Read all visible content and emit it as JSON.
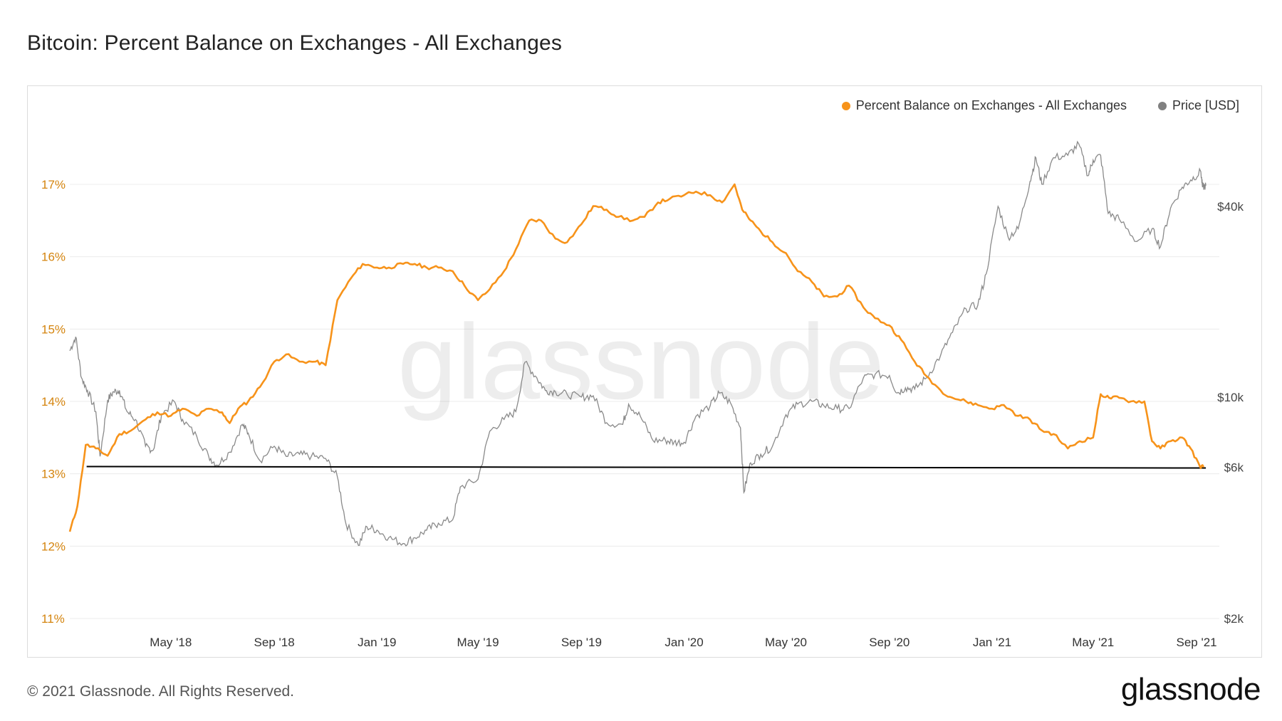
{
  "title": "Bitcoin: Percent Balance on Exchanges - All Exchanges",
  "footer": {
    "copyright": "© 2021 Glassnode. All Rights Reserved.",
    "logo": "glassnode"
  },
  "watermark": "glassnode",
  "colors": {
    "balance": "#f7931a",
    "price": "#8a8a8a",
    "grid": "#ececec",
    "refline": "#000000",
    "left_axis": "#d4840e"
  },
  "legend": [
    {
      "label": "Percent Balance on Exchanges - All Exchanges",
      "color": "#f7931a"
    },
    {
      "label": "Price [USD]",
      "color": "#808080"
    }
  ],
  "chart_data": {
    "type": "line",
    "title": "Bitcoin: Percent Balance on Exchanges - All Exchanges",
    "x_ticks": [
      "May '18",
      "Sep '18",
      "Jan '19",
      "May '19",
      "Sep '19",
      "Jan '20",
      "May '20",
      "Sep '20",
      "Jan '21",
      "May '21",
      "Sep '21"
    ],
    "y_left": {
      "ticks": [
        "11%",
        "12%",
        "13%",
        "14%",
        "15%",
        "16%",
        "17%"
      ],
      "range": [
        11,
        17.6
      ]
    },
    "y_right": {
      "scale": "log",
      "ticks": [
        "$2k",
        "$6k",
        "$10k",
        "$40k"
      ],
      "tick_values": [
        2000,
        6000,
        10000,
        40000
      ]
    },
    "reference_line": {
      "y_percent": 13.1,
      "x_start": "2018-01-21",
      "x_end": "2021-09-12"
    },
    "grid": "horizontal",
    "legend_position": "top-right",
    "series": [
      {
        "name": "Percent Balance on Exchanges - All Exchanges",
        "axis": "left",
        "points": [
          [
            "2018-01-01",
            12.2
          ],
          [
            "2018-01-10",
            12.55
          ],
          [
            "2018-01-20",
            13.4
          ],
          [
            "2018-02-01",
            13.35
          ],
          [
            "2018-02-15",
            13.25
          ],
          [
            "2018-03-01",
            13.55
          ],
          [
            "2018-03-15",
            13.6
          ],
          [
            "2018-04-01",
            13.75
          ],
          [
            "2018-04-15",
            13.85
          ],
          [
            "2018-05-01",
            13.8
          ],
          [
            "2018-05-15",
            13.9
          ],
          [
            "2018-06-01",
            13.8
          ],
          [
            "2018-06-15",
            13.9
          ],
          [
            "2018-07-01",
            13.85
          ],
          [
            "2018-07-10",
            13.7
          ],
          [
            "2018-07-20",
            13.9
          ],
          [
            "2018-08-01",
            14.0
          ],
          [
            "2018-08-15",
            14.2
          ],
          [
            "2018-09-01",
            14.55
          ],
          [
            "2018-09-15",
            14.65
          ],
          [
            "2018-10-01",
            14.55
          ],
          [
            "2018-10-20",
            14.55
          ],
          [
            "2018-11-01",
            14.5
          ],
          [
            "2018-11-15",
            15.4
          ],
          [
            "2018-12-01",
            15.7
          ],
          [
            "2018-12-15",
            15.9
          ],
          [
            "2019-01-01",
            15.85
          ],
          [
            "2019-01-15",
            15.85
          ],
          [
            "2019-02-01",
            15.9
          ],
          [
            "2019-02-15",
            15.9
          ],
          [
            "2019-03-01",
            15.85
          ],
          [
            "2019-03-15",
            15.85
          ],
          [
            "2019-04-01",
            15.8
          ],
          [
            "2019-04-15",
            15.6
          ],
          [
            "2019-05-01",
            15.4
          ],
          [
            "2019-05-15",
            15.55
          ],
          [
            "2019-06-01",
            15.8
          ],
          [
            "2019-06-15",
            16.1
          ],
          [
            "2019-07-01",
            16.5
          ],
          [
            "2019-07-15",
            16.5
          ],
          [
            "2019-08-01",
            16.25
          ],
          [
            "2019-08-15",
            16.2
          ],
          [
            "2019-09-01",
            16.45
          ],
          [
            "2019-09-15",
            16.7
          ],
          [
            "2019-10-01",
            16.65
          ],
          [
            "2019-10-15",
            16.55
          ],
          [
            "2019-11-01",
            16.5
          ],
          [
            "2019-11-15",
            16.55
          ],
          [
            "2019-12-01",
            16.75
          ],
          [
            "2019-12-15",
            16.8
          ],
          [
            "2020-01-01",
            16.85
          ],
          [
            "2020-01-15",
            16.9
          ],
          [
            "2020-02-01",
            16.85
          ],
          [
            "2020-02-15",
            16.75
          ],
          [
            "2020-03-01",
            17.0
          ],
          [
            "2020-03-10",
            16.65
          ],
          [
            "2020-03-20",
            16.5
          ],
          [
            "2020-04-01",
            16.35
          ],
          [
            "2020-04-15",
            16.2
          ],
          [
            "2020-05-01",
            16.05
          ],
          [
            "2020-05-15",
            15.8
          ],
          [
            "2020-06-01",
            15.65
          ],
          [
            "2020-06-15",
            15.45
          ],
          [
            "2020-07-01",
            15.45
          ],
          [
            "2020-07-15",
            15.6
          ],
          [
            "2020-08-01",
            15.3
          ],
          [
            "2020-08-15",
            15.15
          ],
          [
            "2020-09-01",
            15.05
          ],
          [
            "2020-09-15",
            14.85
          ],
          [
            "2020-10-01",
            14.55
          ],
          [
            "2020-10-15",
            14.35
          ],
          [
            "2020-11-01",
            14.15
          ],
          [
            "2020-11-15",
            14.05
          ],
          [
            "2020-12-01",
            14.0
          ],
          [
            "2020-12-15",
            13.95
          ],
          [
            "2021-01-01",
            13.9
          ],
          [
            "2021-01-15",
            13.95
          ],
          [
            "2021-02-01",
            13.8
          ],
          [
            "2021-02-15",
            13.75
          ],
          [
            "2021-03-01",
            13.6
          ],
          [
            "2021-03-15",
            13.55
          ],
          [
            "2021-04-01",
            13.35
          ],
          [
            "2021-04-15",
            13.45
          ],
          [
            "2021-05-01",
            13.5
          ],
          [
            "2021-05-10",
            14.1
          ],
          [
            "2021-05-20",
            14.05
          ],
          [
            "2021-06-01",
            14.05
          ],
          [
            "2021-06-15",
            14.0
          ],
          [
            "2021-07-01",
            14.0
          ],
          [
            "2021-07-10",
            13.45
          ],
          [
            "2021-07-20",
            13.35
          ],
          [
            "2021-08-01",
            13.45
          ],
          [
            "2021-08-15",
            13.5
          ],
          [
            "2021-08-25",
            13.35
          ],
          [
            "2021-09-05",
            13.1
          ],
          [
            "2021-09-10",
            13.1
          ]
        ]
      },
      {
        "name": "Price [USD]",
        "axis": "right",
        "points": [
          [
            "2018-01-01",
            14000
          ],
          [
            "2018-01-08",
            15500
          ],
          [
            "2018-01-15",
            11500
          ],
          [
            "2018-01-22",
            10500
          ],
          [
            "2018-02-01",
            9000
          ],
          [
            "2018-02-06",
            6500
          ],
          [
            "2018-02-15",
            9800
          ],
          [
            "2018-02-22",
            10400
          ],
          [
            "2018-03-01",
            10500
          ],
          [
            "2018-03-10",
            9000
          ],
          [
            "2018-03-20",
            8500
          ],
          [
            "2018-04-01",
            7000
          ],
          [
            "2018-04-10",
            6800
          ],
          [
            "2018-04-20",
            8800
          ],
          [
            "2018-05-05",
            9700
          ],
          [
            "2018-05-15",
            8500
          ],
          [
            "2018-06-01",
            7500
          ],
          [
            "2018-06-15",
            6500
          ],
          [
            "2018-06-25",
            6100
          ],
          [
            "2018-07-10",
            6700
          ],
          [
            "2018-07-25",
            8200
          ],
          [
            "2018-08-01",
            7700
          ],
          [
            "2018-08-15",
            6300
          ],
          [
            "2018-09-01",
            7000
          ],
          [
            "2018-09-15",
            6500
          ],
          [
            "2018-10-01",
            6600
          ],
          [
            "2018-10-15",
            6500
          ],
          [
            "2018-11-01",
            6400
          ],
          [
            "2018-11-15",
            5600
          ],
          [
            "2018-11-25",
            4000
          ],
          [
            "2018-12-10",
            3400
          ],
          [
            "2018-12-20",
            3900
          ],
          [
            "2019-01-01",
            3800
          ],
          [
            "2019-01-15",
            3600
          ],
          [
            "2019-02-01",
            3450
          ],
          [
            "2019-02-15",
            3600
          ],
          [
            "2019-03-01",
            3800
          ],
          [
            "2019-03-15",
            4000
          ],
          [
            "2019-04-01",
            4100
          ],
          [
            "2019-04-10",
            5200
          ],
          [
            "2019-05-01",
            5500
          ],
          [
            "2019-05-15",
            7800
          ],
          [
            "2019-06-01",
            8500
          ],
          [
            "2019-06-15",
            9000
          ],
          [
            "2019-06-26",
            12900
          ],
          [
            "2019-07-10",
            11500
          ],
          [
            "2019-07-20",
            10500
          ],
          [
            "2019-08-01",
            10400
          ],
          [
            "2019-08-15",
            10200
          ],
          [
            "2019-09-01",
            10000
          ],
          [
            "2019-09-15",
            10100
          ],
          [
            "2019-10-01",
            8300
          ],
          [
            "2019-10-20",
            8200
          ],
          [
            "2019-10-27",
            9500
          ],
          [
            "2019-11-10",
            8700
          ],
          [
            "2019-11-25",
            7300
          ],
          [
            "2019-12-10",
            7300
          ],
          [
            "2019-12-20",
            7200
          ],
          [
            "2020-01-01",
            7200
          ],
          [
            "2020-01-15",
            8700
          ],
          [
            "2020-02-01",
            9400
          ],
          [
            "2020-02-12",
            10300
          ],
          [
            "2020-02-25",
            9600
          ],
          [
            "2020-03-08",
            8000
          ],
          [
            "2020-03-12",
            5000
          ],
          [
            "2020-03-20",
            6200
          ],
          [
            "2020-04-01",
            6600
          ],
          [
            "2020-04-15",
            7000
          ],
          [
            "2020-05-01",
            8800
          ],
          [
            "2020-05-15",
            9500
          ],
          [
            "2020-06-01",
            9700
          ],
          [
            "2020-06-15",
            9400
          ],
          [
            "2020-07-01",
            9200
          ],
          [
            "2020-07-15",
            9200
          ],
          [
            "2020-08-01",
            11500
          ],
          [
            "2020-08-15",
            11800
          ],
          [
            "2020-09-01",
            11700
          ],
          [
            "2020-09-10",
            10300
          ],
          [
            "2020-09-20",
            10700
          ],
          [
            "2020-10-01",
            10600
          ],
          [
            "2020-10-15",
            11500
          ],
          [
            "2020-11-01",
            13600
          ],
          [
            "2020-11-15",
            16000
          ],
          [
            "2020-12-01",
            19000
          ],
          [
            "2020-12-15",
            19500
          ],
          [
            "2020-12-25",
            24500
          ],
          [
            "2021-01-08",
            40000
          ],
          [
            "2021-01-20",
            32000
          ],
          [
            "2021-02-01",
            34000
          ],
          [
            "2021-02-15",
            48000
          ],
          [
            "2021-02-22",
            57000
          ],
          [
            "2021-03-01",
            47000
          ],
          [
            "2021-03-15",
            57000
          ],
          [
            "2021-04-01",
            58000
          ],
          [
            "2021-04-14",
            63000
          ],
          [
            "2021-04-25",
            50000
          ],
          [
            "2021-05-01",
            56000
          ],
          [
            "2021-05-10",
            58000
          ],
          [
            "2021-05-19",
            38000
          ],
          [
            "2021-06-01",
            36500
          ],
          [
            "2021-06-22",
            31000
          ],
          [
            "2021-07-10",
            34000
          ],
          [
            "2021-07-20",
            29800
          ],
          [
            "2021-08-01",
            39500
          ],
          [
            "2021-08-15",
            46000
          ],
          [
            "2021-08-25",
            48500
          ],
          [
            "2021-09-06",
            51500
          ],
          [
            "2021-09-08",
            46000
          ],
          [
            "2021-09-12",
            46500
          ]
        ]
      }
    ]
  }
}
